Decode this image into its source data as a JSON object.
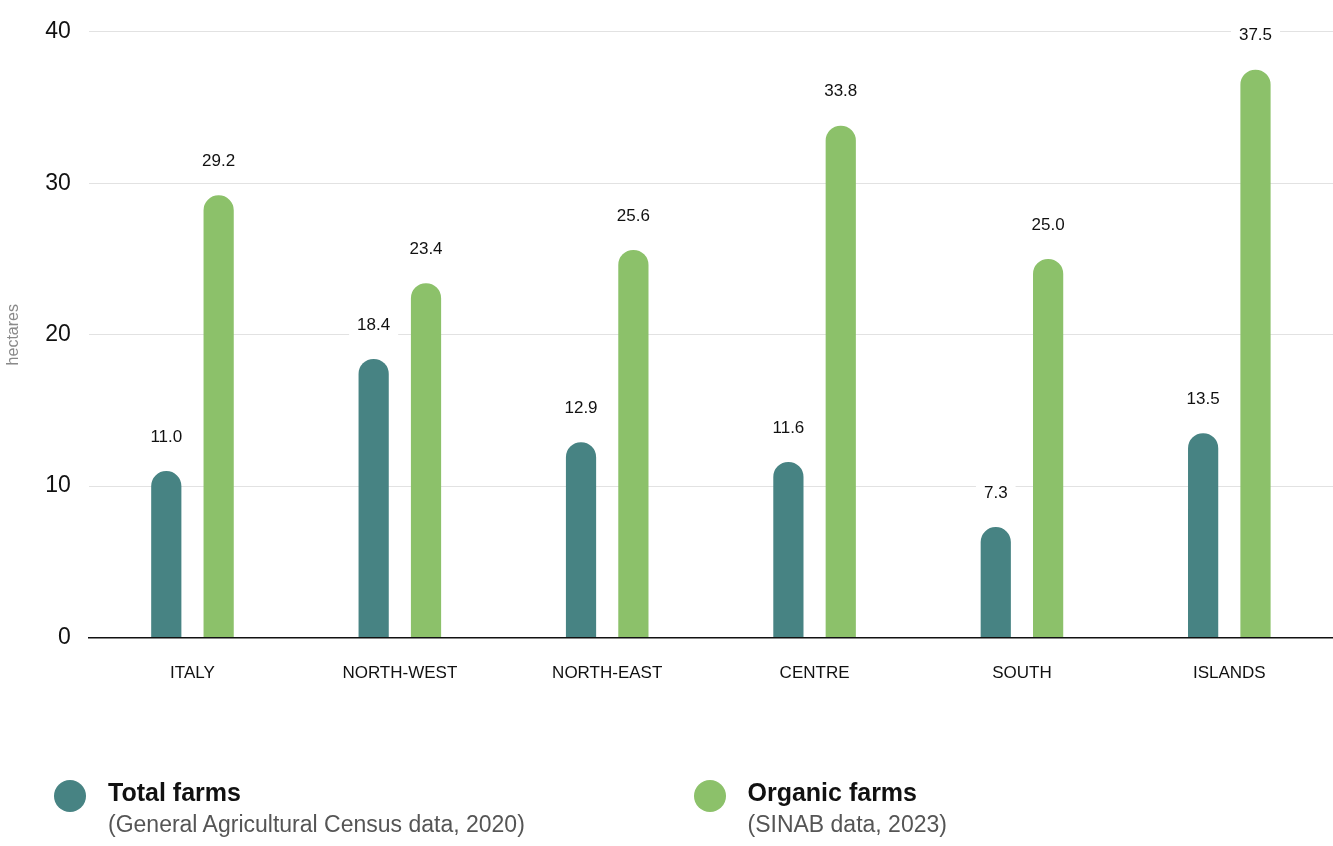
{
  "chart_data": {
    "type": "bar",
    "ylabel": "hectares",
    "categories": [
      "ITALY",
      "NORTH-WEST",
      "NORTH-EAST",
      "CENTRE",
      "SOUTH",
      "ISLANDS"
    ],
    "series": [
      {
        "name": "Total farms",
        "color": "#478383",
        "values": [
          11.0,
          18.4,
          12.9,
          11.6,
          7.3,
          13.5
        ],
        "value_labels": [
          "11.0",
          "18.4",
          "12.9",
          "11.6",
          "7.3",
          "13.5"
        ]
      },
      {
        "name": "Organic farms",
        "color": "#8cc16a",
        "values": [
          29.2,
          23.4,
          25.6,
          33.8,
          25.0,
          37.5
        ],
        "value_labels": [
          "29.2",
          "23.4",
          "25.6",
          "33.8",
          "25.0",
          "37.5"
        ]
      }
    ],
    "ylim": [
      0,
      40
    ],
    "yticks": [
      0,
      10,
      20,
      30,
      40
    ],
    "grid": "y",
    "legend": "bottom left",
    "annotations": [
      "(General Agricultural Census data, 2020)",
      "(SINAB data, 2023)"
    ]
  }
}
